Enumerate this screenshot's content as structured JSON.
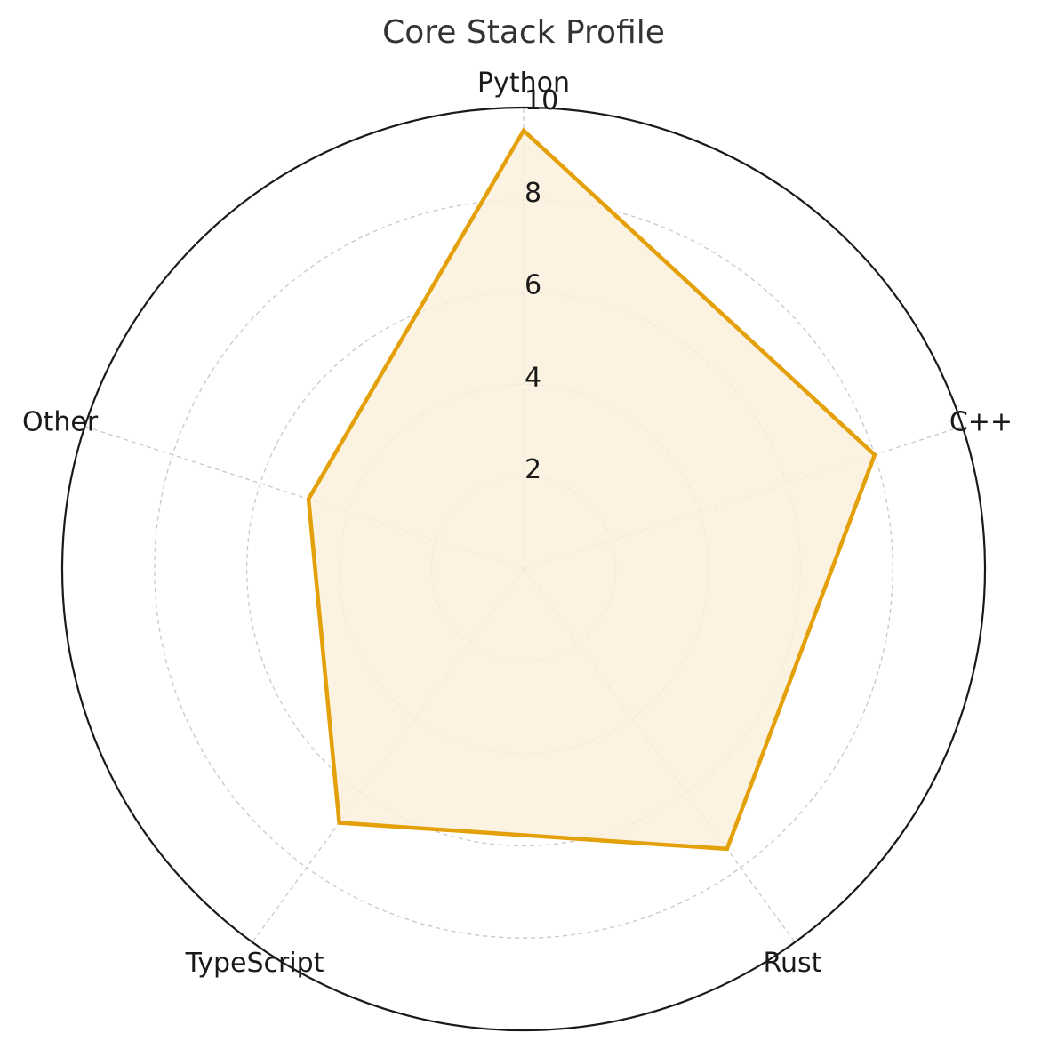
{
  "chart_data": {
    "type": "radar",
    "title": "Core Stack Profile",
    "categories": [
      "Python",
      "C++",
      "Rust",
      "TypeScript",
      "Other"
    ],
    "series": [
      {
        "values": [
          9.5,
          8.0,
          7.5,
          6.8,
          4.9
        ]
      }
    ],
    "rlim": [
      0,
      10
    ],
    "r_ticks": [
      2,
      4,
      6,
      8,
      10
    ],
    "grid": true,
    "colors": {
      "line": "#E3A008",
      "fill": "#FAF0DC",
      "grid": "#c8c8c8",
      "outer": "#1a1a1a"
    }
  }
}
